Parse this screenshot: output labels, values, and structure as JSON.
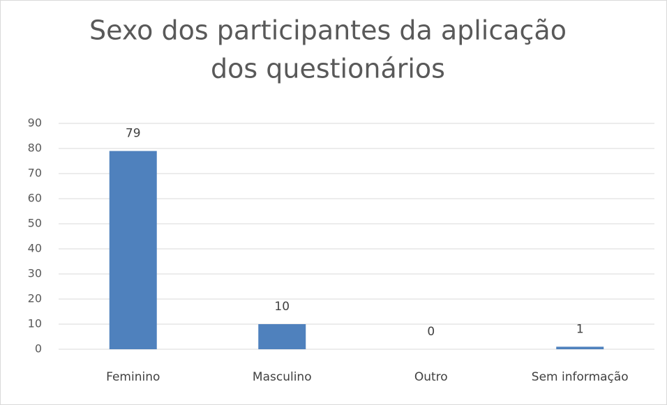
{
  "chart_data": {
    "type": "bar",
    "title": [
      "Sexo dos participantes da aplicação",
      "dos questionários"
    ],
    "categories": [
      "Feminino",
      "Masculino",
      "Outro",
      "Sem informação"
    ],
    "values": [
      79,
      10,
      0,
      1
    ],
    "color": "#4f81bd",
    "ylim": [
      0,
      90
    ],
    "yticks": [
      0,
      10,
      20,
      30,
      40,
      50,
      60,
      70,
      80,
      90
    ],
    "grid": true
  }
}
